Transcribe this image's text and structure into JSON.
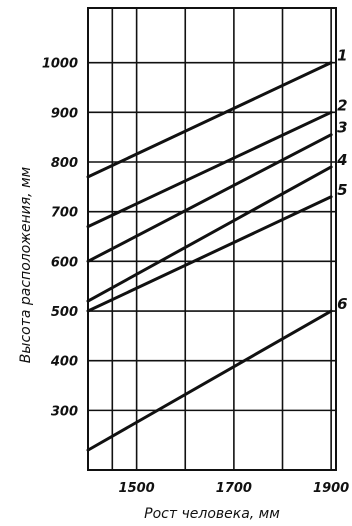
{
  "chart_data": {
    "type": "line",
    "xlabel": "Рост человека, мм",
    "ylabel": "Высота расположения, мм",
    "x_ticks": [
      1500,
      1700,
      1900
    ],
    "y_ticks": [
      300,
      400,
      500,
      600,
      700,
      800,
      900,
      1000
    ],
    "xlim": [
      1400,
      1910
    ],
    "ylim": [
      180,
      1110
    ],
    "grid": true,
    "series": [
      {
        "name": "1",
        "x": [
          1400,
          1900
        ],
        "y": [
          770,
          1000
        ]
      },
      {
        "name": "2",
        "x": [
          1400,
          1900
        ],
        "y": [
          670,
          900
        ]
      },
      {
        "name": "3",
        "x": [
          1400,
          1900
        ],
        "y": [
          600,
          855
        ]
      },
      {
        "name": "4",
        "x": [
          1400,
          1900
        ],
        "y": [
          520,
          790
        ]
      },
      {
        "name": "5",
        "x": [
          1400,
          1900
        ],
        "y": [
          500,
          730
        ]
      },
      {
        "name": "6",
        "x": [
          1400,
          1900
        ],
        "y": [
          220,
          500
        ]
      }
    ]
  }
}
